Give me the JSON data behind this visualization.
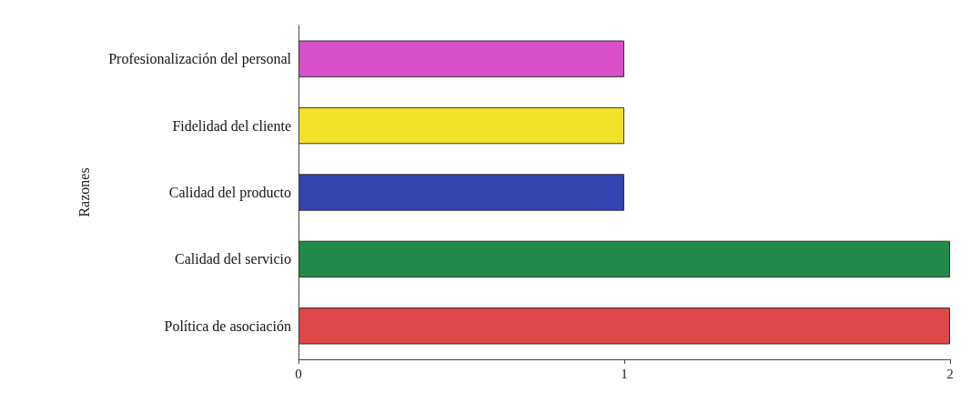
{
  "chart_data": {
    "type": "bar",
    "orientation": "horizontal",
    "ylabel": "Razones",
    "categories": [
      "Profesionalización del personal",
      "Fidelidad del cliente",
      "Calidad del producto",
      "Calidad del servicio",
      "Política de asociación"
    ],
    "values": [
      1,
      1,
      1,
      2,
      2
    ],
    "colors": [
      "#d94fc8",
      "#f2e22a",
      "#3344b0",
      "#21894a",
      "#de4848"
    ],
    "xlim": [
      0,
      2
    ],
    "xticks": [
      0,
      1,
      2
    ],
    "grid": false
  }
}
